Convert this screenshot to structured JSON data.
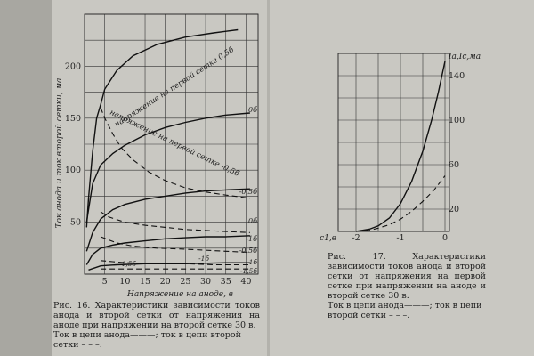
{
  "chart_data": [
    {
      "type": "line",
      "title": "",
      "ylabel": "Ток анода и ток второй сетки, ма",
      "xlabel": "Напряжение на аноде, в",
      "xlim": [
        0,
        43
      ],
      "ylim": [
        0,
        250
      ],
      "x_ticks": [
        5,
        10,
        15,
        20,
        25,
        30,
        35,
        40
      ],
      "y_ticks": [
        0,
        50,
        100,
        150,
        200
      ],
      "y_tick_labels": [
        "",
        "50",
        "100",
        "150",
        "200"
      ],
      "x_tick_labels": [
        "5",
        "10",
        "15",
        "20",
        "25",
        "30",
        "35",
        "40"
      ],
      "grid": true,
      "series": [
        {
          "name": "0,5б",
          "kind": "anode",
          "style": "solid",
          "points": [
            [
              0.5,
              45
            ],
            [
              1,
              73
            ],
            [
              2,
              118
            ],
            [
              3,
              150
            ],
            [
              4,
              163
            ],
            [
              5,
              178
            ],
            [
              8,
              196
            ],
            [
              12,
              210
            ],
            [
              18,
              221
            ],
            [
              25,
              228
            ],
            [
              32,
              232
            ],
            [
              38,
              235
            ]
          ]
        },
        {
          "name": "0б",
          "kind": "anode",
          "style": "solid",
          "points": [
            [
              0.5,
              50
            ],
            [
              2,
              87
            ],
            [
              4,
              105
            ],
            [
              7,
              116
            ],
            [
              10,
              124
            ],
            [
              15,
              134
            ],
            [
              20,
              141
            ],
            [
              25,
              146
            ],
            [
              30,
              150
            ],
            [
              35,
              153
            ],
            [
              41,
              155
            ]
          ]
        },
        {
          "name": "-0,5б",
          "kind": "anode",
          "style": "solid",
          "points": [
            [
              0.5,
              22
            ],
            [
              2,
              40
            ],
            [
              4,
              53
            ],
            [
              7,
              62
            ],
            [
              10,
              67
            ],
            [
              15,
              72
            ],
            [
              20,
              75
            ],
            [
              25,
              78
            ],
            [
              30,
              80
            ],
            [
              35,
              81
            ],
            [
              41,
              82
            ]
          ]
        },
        {
          "name": "-1б",
          "kind": "anode",
          "style": "solid",
          "points": [
            [
              0.5,
              9
            ],
            [
              2,
              19
            ],
            [
              4,
              25
            ],
            [
              7,
              28
            ],
            [
              10,
              30
            ],
            [
              15,
              32
            ],
            [
              20,
              34
            ],
            [
              25,
              35
            ],
            [
              30,
              36
            ],
            [
              35,
              36
            ],
            [
              41,
              37
            ]
          ]
        },
        {
          "name": "-1,5б",
          "kind": "anode",
          "style": "solid",
          "points": [
            [
              1,
              4
            ],
            [
              4,
              8
            ],
            [
              8,
              9
            ],
            [
              15,
              10
            ],
            [
              25,
              10
            ],
            [
              35,
              11
            ],
            [
              41,
              11
            ]
          ]
        },
        {
          "name": "0,5б",
          "kind": "screen",
          "style": "dashed",
          "points": [
            [
              4,
              160
            ],
            [
              5,
              150
            ],
            [
              7,
              135
            ],
            [
              9,
              122
            ],
            [
              12,
              110
            ],
            [
              16,
              98
            ],
            [
              20,
              90
            ],
            [
              25,
              83
            ],
            [
              30,
              79
            ],
            [
              35,
              76
            ],
            [
              41,
              73
            ]
          ]
        },
        {
          "name": "0б",
          "kind": "screen",
          "style": "dashed",
          "points": [
            [
              4,
              60
            ],
            [
              6,
              55
            ],
            [
              10,
              50
            ],
            [
              15,
              47
            ],
            [
              20,
              45
            ],
            [
              25,
              43
            ],
            [
              30,
              42
            ],
            [
              35,
              41
            ],
            [
              41,
              40
            ]
          ]
        },
        {
          "name": "-0,5б",
          "kind": "screen",
          "style": "dashed",
          "points": [
            [
              4,
              36
            ],
            [
              8,
              30
            ],
            [
              12,
              27
            ],
            [
              18,
              25
            ],
            [
              25,
              24
            ],
            [
              30,
              23
            ],
            [
              35,
              22
            ],
            [
              41,
              21
            ]
          ]
        },
        {
          "name": "-1б",
          "kind": "screen",
          "style": "dashed",
          "points": [
            [
              4,
              13
            ],
            [
              10,
              11
            ],
            [
              18,
              10
            ],
            [
              25,
              10
            ],
            [
              32,
              9
            ],
            [
              41,
              9
            ]
          ]
        },
        {
          "name": "-1,5б",
          "kind": "screen",
          "style": "dashed",
          "points": [
            [
              4,
              5
            ],
            [
              12,
              5
            ],
            [
              20,
              5
            ],
            [
              30,
              5
            ],
            [
              41,
              5
            ]
          ]
        }
      ],
      "annotations": [
        "напряжение на первой сетке 0,5б",
        "напряжение на первой сетке -0,5б",
        "0б",
        "-0,5б",
        "0б",
        "-1б",
        "-0,5б",
        "1,5б",
        "-1б",
        "-1б",
        "-1,5б"
      ]
    },
    {
      "type": "line",
      "title": "",
      "ylabel": "Iа,Iс,ма",
      "xlabel": "Uс1,в",
      "xlim": [
        -2.4,
        0.1
      ],
      "ylim": [
        0,
        160
      ],
      "x_ticks": [
        -2,
        -1,
        0
      ],
      "x_tick_labels": [
        "-2",
        "-1",
        "0"
      ],
      "y_ticks": [
        20,
        60,
        100,
        140
      ],
      "y_tick_labels": [
        "20",
        "60",
        "100",
        "140"
      ],
      "grid": true,
      "series": [
        {
          "kind": "anode",
          "style": "solid",
          "points": [
            [
              -2,
              0
            ],
            [
              -1.7,
              2
            ],
            [
              -1.5,
              5
            ],
            [
              -1.25,
              12
            ],
            [
              -1,
              25
            ],
            [
              -0.75,
              45
            ],
            [
              -0.5,
              72
            ],
            [
              -0.3,
              100
            ],
            [
              -0.15,
              125
            ],
            [
              0,
              153
            ]
          ]
        },
        {
          "kind": "screen",
          "style": "dashed",
          "points": [
            [
              -2,
              0
            ],
            [
              -1.7,
              1
            ],
            [
              -1.5,
              3
            ],
            [
              -1.25,
              6
            ],
            [
              -1,
              11
            ],
            [
              -0.75,
              18
            ],
            [
              -0.5,
              27
            ],
            [
              -0.25,
              37
            ],
            [
              0,
              50
            ]
          ]
        }
      ]
    }
  ],
  "captions": {
    "fig16": {
      "number": "Рис. 16.",
      "text": "Характеристики зависимости токов анода и второй сетки от напряжения на аноде при напряжении на второй сетке 30 в.",
      "legend": "Ток в цепи анода———; ток в цепи второй сетки – – –."
    },
    "fig17": {
      "number": "Рис. 17.",
      "text": "Характеристики зависимости токов анода и второй сетки от напряжения на первой сетке при напряжении на аноде и второй сетке 30 в.",
      "legend": "Ток в цепи анода———; ток в цепи второй сетки – – –."
    }
  },
  "colors": {
    "paper": "#c9c8c2",
    "ink": "#1e1e1e",
    "grid": "#2a2a2a"
  }
}
